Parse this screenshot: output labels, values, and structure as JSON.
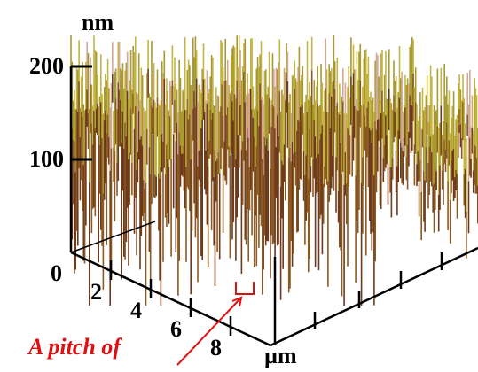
{
  "z_axis": {
    "unit": "nm",
    "ticks": [
      100,
      200
    ]
  },
  "x_axis": {
    "unit": "µm",
    "ticks": [
      0,
      2,
      4,
      6,
      8
    ]
  },
  "annotation": "A pitch of"
}
